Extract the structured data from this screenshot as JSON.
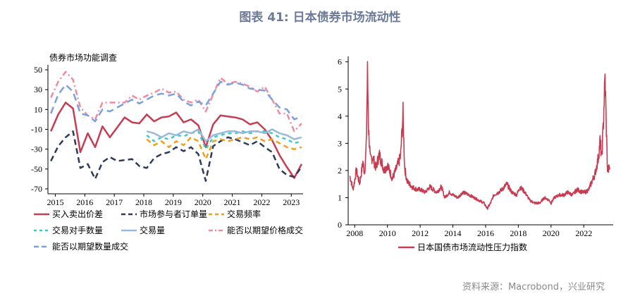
{
  "header": {
    "title": "图表 41: 日本债券市场流动性"
  },
  "footer": {
    "source": "资料来源：Macrobond，兴业研究"
  },
  "chart_data": [
    {
      "type": "line",
      "title": "",
      "ylabel": "债券市场功能调查",
      "xlabel": "",
      "ylim": [
        -75,
        55
      ],
      "yticks": [
        50,
        30,
        10,
        -10,
        -30,
        -50,
        -70
      ],
      "xlim": [
        2014.75,
        2023.4
      ],
      "xticks": [
        2015,
        2016,
        2017,
        2018,
        2019,
        2020,
        2021,
        2022,
        2023
      ],
      "legend": "bottom",
      "series": [
        {
          "name": "买入卖出价差",
          "color": "#c83c52",
          "dash": "",
          "x": [
            2014.85,
            2015.1,
            2015.35,
            2015.6,
            2015.85,
            2016.1,
            2016.35,
            2016.6,
            2016.85,
            2017.1,
            2017.35,
            2017.6,
            2017.85,
            2018.1,
            2018.35,
            2018.6,
            2018.85,
            2019.1,
            2019.35,
            2019.6,
            2019.85,
            2020.1,
            2020.35,
            2020.6,
            2020.85,
            2021.1,
            2021.35,
            2021.6,
            2021.85,
            2022.1,
            2022.35,
            2022.6,
            2022.85,
            2023.1,
            2023.35
          ],
          "y": [
            -12,
            5,
            17,
            11,
            -33,
            -14,
            -28,
            -7,
            -18,
            -8,
            2,
            -3,
            -4,
            5,
            -2,
            2,
            3,
            7,
            -3,
            0,
            -6,
            -28,
            -5,
            4,
            3,
            2,
            0,
            -5,
            -3,
            -10,
            -21,
            -36,
            -48,
            -59,
            -45
          ]
        },
        {
          "name": "市场参与者订单量",
          "color": "#2e3a5a",
          "dash": "8,5",
          "x": [
            2014.85,
            2015.1,
            2015.35,
            2015.6,
            2015.85,
            2016.1,
            2016.35,
            2016.6,
            2016.85,
            2017.1,
            2017.35,
            2017.6,
            2017.85,
            2018.1,
            2018.35,
            2018.6,
            2018.85,
            2019.1,
            2019.35,
            2019.6,
            2019.85,
            2020.1,
            2020.35,
            2020.6,
            2020.85,
            2021.1,
            2021.35,
            2021.6,
            2021.85,
            2022.1,
            2022.35,
            2022.6,
            2022.85,
            2023.1,
            2023.35
          ],
          "y": [
            -42,
            -27,
            -18,
            -12,
            -49,
            -45,
            -60,
            -43,
            -38,
            -42,
            -41,
            -40,
            -47,
            -49,
            -39,
            -35,
            -33,
            -28,
            -32,
            -28,
            -35,
            -62,
            -27,
            -22,
            -18,
            -20,
            -23,
            -26,
            -22,
            -28,
            -33,
            -50,
            -56,
            -58,
            -48
          ]
        },
        {
          "name": "交易频率",
          "color": "#f0a020",
          "dash": "7,5",
          "x": [
            2018.1,
            2018.35,
            2018.6,
            2018.85,
            2019.1,
            2019.35,
            2019.6,
            2019.85,
            2020.1,
            2020.35,
            2020.6,
            2020.85,
            2021.1,
            2021.35,
            2021.6,
            2021.85,
            2022.1,
            2022.35,
            2022.6,
            2022.85,
            2023.1,
            2023.35
          ],
          "y": [
            -20,
            -26,
            -22,
            -28,
            -22,
            -26,
            -18,
            -22,
            -40,
            -22,
            -20,
            -22,
            -20,
            -18,
            -20,
            -18,
            -22,
            -20,
            -24,
            -28,
            -30,
            -28
          ]
        },
        {
          "name": "交易对手数量",
          "color": "#3fc9c8",
          "dash": "5,5",
          "x": [
            2018.1,
            2018.35,
            2018.6,
            2018.85,
            2019.1,
            2019.35,
            2019.6,
            2019.85,
            2020.1,
            2020.35,
            2020.6,
            2020.85,
            2021.1,
            2021.35,
            2021.6,
            2021.85,
            2022.1,
            2022.35,
            2022.6,
            2022.85,
            2023.1,
            2023.35
          ],
          "y": [
            -16,
            -22,
            -18,
            -20,
            -16,
            -17,
            -14,
            -12,
            -30,
            -18,
            -16,
            -14,
            -14,
            -12,
            -14,
            -12,
            -12,
            -14,
            -18,
            -20,
            -24,
            -22
          ]
        },
        {
          "name": "交易量",
          "color": "#99b9da",
          "dash": "",
          "x": [
            2018.1,
            2018.35,
            2018.6,
            2018.85,
            2019.1,
            2019.35,
            2019.6,
            2019.85,
            2020.1,
            2020.35,
            2020.6,
            2020.85,
            2021.1,
            2021.35,
            2021.6,
            2021.85,
            2022.1,
            2022.35,
            2022.6,
            2022.85,
            2023.1,
            2023.35
          ],
          "y": [
            -12,
            -14,
            -18,
            -14,
            -16,
            -12,
            -14,
            -10,
            -22,
            -16,
            -14,
            -12,
            -12,
            -14,
            -12,
            -12,
            -14,
            -10,
            -14,
            -16,
            -20,
            -18
          ]
        },
        {
          "name": "能否以期望价格成交",
          "color": "#f08aa0",
          "dash": "8,4,2,4",
          "x": [
            2014.85,
            2015.1,
            2015.35,
            2015.6,
            2015.85,
            2016.1,
            2016.35,
            2016.6,
            2016.85,
            2017.1,
            2017.35,
            2017.6,
            2017.85,
            2018.1,
            2018.35,
            2018.6,
            2018.85,
            2019.1,
            2019.35,
            2019.6,
            2019.85,
            2020.1,
            2020.35,
            2020.6,
            2020.85,
            2021.1,
            2021.35,
            2021.6,
            2021.85,
            2022.1,
            2022.35,
            2022.6,
            2022.85,
            2023.1,
            2023.35
          ],
          "y": [
            22,
            38,
            48,
            40,
            12,
            4,
            0,
            17,
            17,
            17,
            17,
            24,
            20,
            24,
            27,
            31,
            27,
            28,
            20,
            17,
            20,
            8,
            25,
            42,
            36,
            38,
            36,
            33,
            28,
            33,
            20,
            6,
            6,
            -12,
            -4
          ]
        },
        {
          "name": "能否以期望数量成交",
          "color": "#7ba0e0",
          "dash": "10,6",
          "x": [
            2014.85,
            2015.1,
            2015.35,
            2015.6,
            2015.85,
            2016.1,
            2016.35,
            2016.6,
            2016.85,
            2017.1,
            2017.35,
            2017.6,
            2017.85,
            2018.1,
            2018.35,
            2018.6,
            2018.85,
            2019.1,
            2019.35,
            2019.6,
            2019.85,
            2020.1,
            2020.35,
            2020.6,
            2020.85,
            2021.1,
            2021.35,
            2021.6,
            2021.85,
            2022.1,
            2022.35,
            2022.6,
            2022.85,
            2023.1,
            2023.35
          ],
          "y": [
            6,
            25,
            35,
            28,
            6,
            4,
            -2,
            10,
            8,
            12,
            16,
            20,
            16,
            20,
            24,
            26,
            24,
            26,
            18,
            14,
            18,
            14,
            26,
            38,
            35,
            37,
            35,
            31,
            30,
            29,
            20,
            12,
            10,
            0,
            3
          ]
        }
      ]
    },
    {
      "type": "line",
      "title": "",
      "xlabel": "",
      "ylabel": "",
      "ylim": [
        0,
        6.2
      ],
      "yticks": [
        0,
        1,
        2,
        3,
        4,
        5,
        6
      ],
      "xlim": [
        2007.6,
        2023.8
      ],
      "xticks": [
        2008,
        2010,
        2012,
        2014,
        2016,
        2018,
        2020,
        2022
      ],
      "legend": "bottom",
      "series": [
        {
          "name": "日本国债市场流动性压力指数",
          "color": "#c83c52",
          "x": [
            2007.7,
            2007.9,
            2008.1,
            2008.3,
            2008.5,
            2008.6,
            2008.7,
            2008.78,
            2008.85,
            2008.95,
            2009.1,
            2009.3,
            2009.5,
            2009.8,
            2010.0,
            2010.3,
            2010.5,
            2010.8,
            2010.95,
            2011.05,
            2011.2,
            2011.5,
            2011.8,
            2012.0,
            2012.3,
            2012.6,
            2013.0,
            2013.3,
            2013.5,
            2013.8,
            2014.0,
            2014.3,
            2014.6,
            2015.0,
            2015.3,
            2015.6,
            2015.9,
            2016.1,
            2016.3,
            2016.5,
            2016.8,
            2017.0,
            2017.3,
            2017.6,
            2017.9,
            2018.1,
            2018.4,
            2018.7,
            2019.0,
            2019.3,
            2019.6,
            2019.9,
            2020.0,
            2020.2,
            2020.5,
            2020.8,
            2021.0,
            2021.3,
            2021.6,
            2021.9,
            2022.1,
            2022.3,
            2022.5,
            2022.7,
            2022.9,
            2023.0,
            2023.1,
            2023.2,
            2023.3,
            2023.45,
            2023.6
          ],
          "y": [
            1.8,
            1.3,
            2.0,
            1.5,
            2.3,
            1.9,
            2.8,
            5.6,
            3.5,
            2.4,
            2.5,
            2.1,
            2.6,
            2.0,
            2.2,
            1.7,
            2.0,
            2.5,
            4.1,
            2.1,
            1.6,
            1.4,
            1.3,
            1.3,
            1.2,
            1.4,
            1.2,
            1.4,
            1.0,
            1.2,
            1.1,
            1.0,
            1.2,
            1.1,
            1.0,
            0.9,
            0.8,
            0.6,
            0.8,
            1.1,
            1.2,
            1.3,
            1.5,
            1.2,
            1.1,
            1.4,
            1.2,
            0.9,
            0.8,
            0.8,
            1.0,
            0.9,
            0.8,
            1.0,
            1.1,
            1.1,
            1.2,
            1.1,
            1.3,
            1.2,
            1.2,
            1.3,
            1.6,
            1.9,
            2.5,
            3.1,
            2.4,
            3.8,
            5.4,
            2.0,
            2.1
          ]
        }
      ]
    }
  ]
}
